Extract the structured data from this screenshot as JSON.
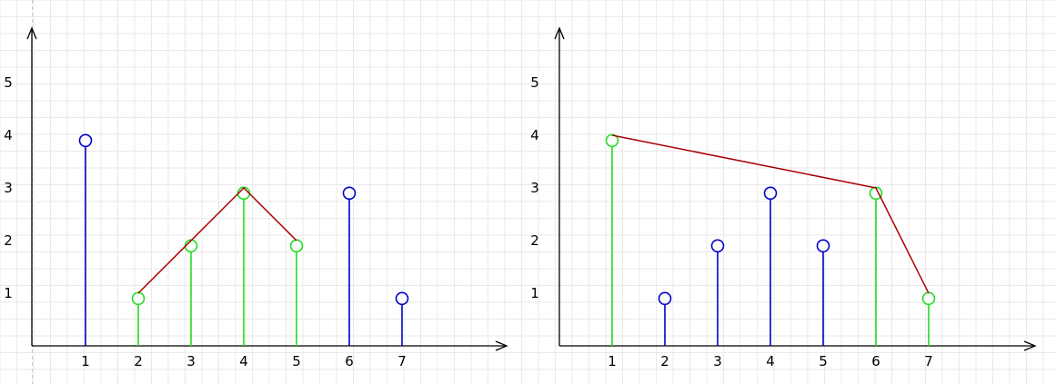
{
  "colors": {
    "background": "#ffffff",
    "grid": "#e9e9e9",
    "axis": "#000000",
    "stem_default": "#0000cc",
    "stem_highlight": "#22dd22",
    "connector": "#aa0000"
  },
  "diagrams": [
    {
      "x_ticks": [
        "1",
        "2",
        "3",
        "4",
        "5",
        "6",
        "7"
      ],
      "y_ticks": [
        "1",
        "2",
        "3",
        "4",
        "5"
      ],
      "stems": [
        {
          "x": 1,
          "y": 3.9,
          "highlight": false
        },
        {
          "x": 2,
          "y": 0.9,
          "highlight": true
        },
        {
          "x": 3,
          "y": 1.9,
          "highlight": true
        },
        {
          "x": 4,
          "y": 2.9,
          "highlight": true
        },
        {
          "x": 5,
          "y": 1.9,
          "highlight": true
        },
        {
          "x": 6,
          "y": 2.9,
          "highlight": false
        },
        {
          "x": 7,
          "y": 0.9,
          "highlight": false
        }
      ],
      "connector": [
        [
          2,
          1
        ],
        [
          4,
          3
        ],
        [
          5,
          2
        ]
      ]
    },
    {
      "x_ticks": [
        "1",
        "2",
        "3",
        "4",
        "5",
        "6",
        "7"
      ],
      "y_ticks": [
        "1",
        "2",
        "3",
        "4",
        "5"
      ],
      "stems": [
        {
          "x": 1,
          "y": 3.9,
          "highlight": true
        },
        {
          "x": 2,
          "y": 0.9,
          "highlight": false
        },
        {
          "x": 3,
          "y": 1.9,
          "highlight": false
        },
        {
          "x": 4,
          "y": 2.9,
          "highlight": false
        },
        {
          "x": 5,
          "y": 1.9,
          "highlight": false
        },
        {
          "x": 6,
          "y": 2.9,
          "highlight": true
        },
        {
          "x": 7,
          "y": 0.9,
          "highlight": true
        }
      ],
      "connector": [
        [
          1,
          4
        ],
        [
          6,
          3
        ],
        [
          7,
          1
        ]
      ]
    }
  ]
}
